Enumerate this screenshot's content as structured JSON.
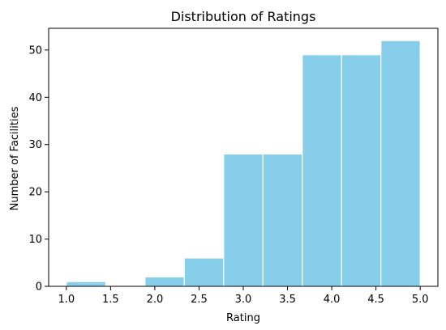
{
  "chart_data": {
    "type": "bar",
    "title": "Distribution of Ratings",
    "xlabel": "Rating",
    "ylabel": "Number of Facilities",
    "bin_edges": [
      1.0,
      1.444,
      1.889,
      2.333,
      2.778,
      3.222,
      3.667,
      4.111,
      4.556,
      5.0
    ],
    "values": [
      1,
      0,
      2,
      6,
      28,
      28,
      49,
      49,
      52
    ],
    "xlim": [
      0.8,
      5.2
    ],
    "ylim": [
      0,
      54.6
    ],
    "xticks": [
      1.0,
      1.5,
      2.0,
      2.5,
      3.0,
      3.5,
      4.0,
      4.5,
      5.0
    ],
    "xtick_labels": [
      "1.0",
      "1.5",
      "2.0",
      "2.5",
      "3.0",
      "3.5",
      "4.0",
      "4.5",
      "5.0"
    ],
    "yticks": [
      0,
      10,
      20,
      30,
      40,
      50
    ],
    "ytick_labels": [
      "0",
      "10",
      "20",
      "30",
      "40",
      "50"
    ],
    "grid": false,
    "colors": {
      "bar": "#87ceeb",
      "bar_edge": "#ffffff",
      "axis": "#000000"
    }
  }
}
